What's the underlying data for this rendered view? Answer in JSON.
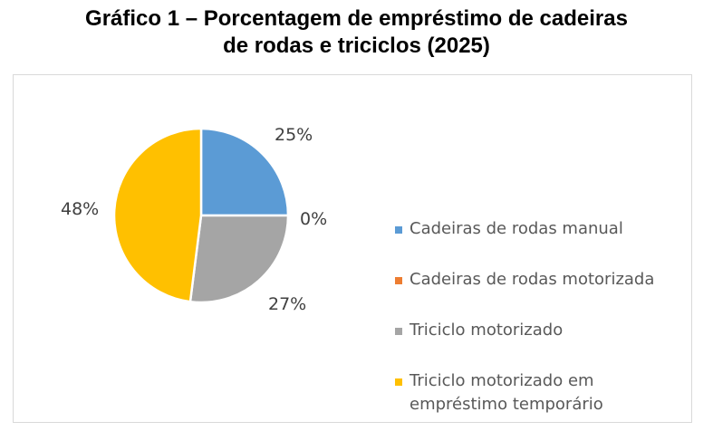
{
  "title": {
    "line1": "Gráfico 1 – Porcentagem de empréstimo de cadeiras",
    "line2": "de rodas e triciclos (2025)"
  },
  "labels": {
    "slice0": "25%",
    "slice1": "0%",
    "slice2": "27%",
    "slice3": "48%"
  },
  "legend": {
    "items": [
      {
        "label": "Cadeiras de rodas manual",
        "color": "#5b9bd5"
      },
      {
        "label": "Cadeiras de rodas motorizada",
        "color": "#ed7d31"
      },
      {
        "label": "Triciclo motorizado",
        "color": "#a5a5a5"
      },
      {
        "label": "Triciclo motorizado em",
        "label2": "empréstimo temporário",
        "color": "#ffc000"
      }
    ]
  },
  "chart_data": {
    "type": "pie",
    "title": "Gráfico 1 – Porcentagem de empréstimo de cadeiras de rodas e triciclos (2025)",
    "categories": [
      "Cadeiras de rodas manual",
      "Cadeiras de rodas motorizada",
      "Triciclo motorizado",
      "Triciclo motorizado em empréstimo temporário"
    ],
    "values": [
      25,
      0,
      27,
      48
    ],
    "unit": "%",
    "colors": [
      "#5b9bd5",
      "#ed7d31",
      "#a5a5a5",
      "#ffc000"
    ],
    "data_labels": [
      "25%",
      "0%",
      "27%",
      "48%"
    ],
    "legend_position": "right",
    "start_angle_deg": 0,
    "direction": "clockwise"
  }
}
